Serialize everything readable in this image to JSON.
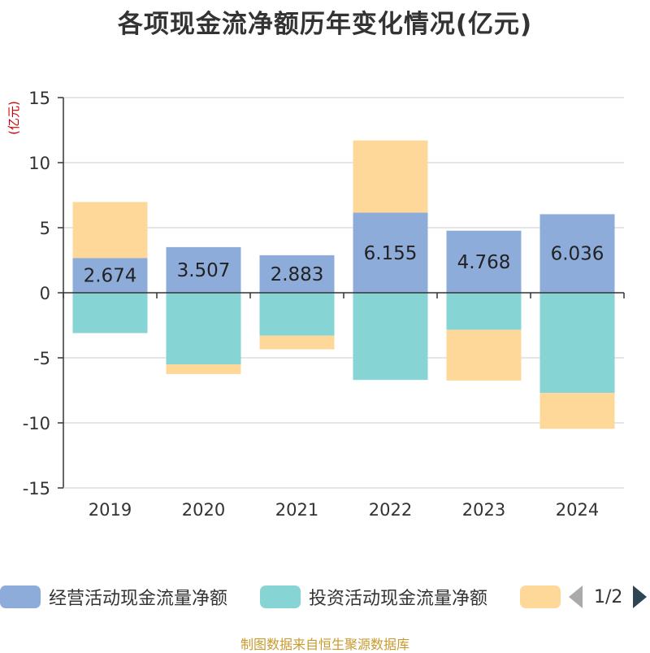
{
  "chart_data": {
    "type": "bar",
    "stacked": true,
    "title": "各项现金流净额历年变化情况(亿元)",
    "ylabel": "(亿元)",
    "xlabel": "",
    "categories": [
      "2019",
      "2020",
      "2021",
      "2022",
      "2023",
      "2024"
    ],
    "ylim": [
      -15,
      15
    ],
    "yticks": [
      15,
      10,
      5,
      0,
      -5,
      -10,
      -15
    ],
    "grid": true,
    "series": [
      {
        "name": "经营活动现金流量净额",
        "color": "#8eacd9",
        "values": [
          2.674,
          3.507,
          2.883,
          6.155,
          4.768,
          6.036
        ],
        "labels": [
          "2.674",
          "3.507",
          "2.883",
          "6.155",
          "4.768",
          "6.036"
        ]
      },
      {
        "name": "投资活动现金流量净额",
        "color": "#86d4d4",
        "values": [
          -3.1,
          -5.5,
          -3.3,
          -6.7,
          -2.85,
          -7.7
        ]
      },
      {
        "name": "",
        "color": "#fed898",
        "values": [
          4.3,
          -0.75,
          -1.05,
          5.55,
          -3.9,
          -2.75
        ]
      }
    ]
  },
  "legend": {
    "items": [
      {
        "label": "经营活动现金流量净额",
        "color": "#8eacd9"
      },
      {
        "label": "投资活动现金流量净额",
        "color": "#86d4d4"
      },
      {
        "label": "",
        "color": "#fed898"
      }
    ],
    "pager": "1/2"
  },
  "source": "制图数据来自恒生聚源数据库"
}
